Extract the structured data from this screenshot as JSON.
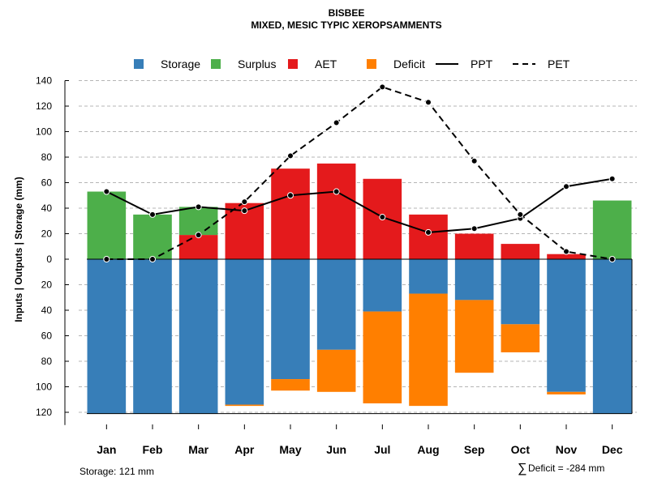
{
  "chart_data": {
    "type": "bar",
    "title": "BISBEE",
    "subtitle": "MIXED, MESIC TYPIC XEROPSAMMENTS",
    "ylabel": "Inputs | Outputs | Storage     (mm)",
    "categories": [
      "Jan",
      "Feb",
      "Mar",
      "Apr",
      "May",
      "Jun",
      "Jul",
      "Aug",
      "Sep",
      "Oct",
      "Nov",
      "Dec"
    ],
    "ylim": [
      -121,
      140
    ],
    "yticks": [
      {
        "value": 140,
        "label": "140"
      },
      {
        "value": 120,
        "label": "120"
      },
      {
        "value": 100,
        "label": "100"
      },
      {
        "value": 80,
        "label": "80"
      },
      {
        "value": 60,
        "label": "60"
      },
      {
        "value": 40,
        "label": "40"
      },
      {
        "value": 20,
        "label": "20"
      },
      {
        "value": 0,
        "label": "0"
      },
      {
        "value": -20,
        "label": "20"
      },
      {
        "value": -40,
        "label": "40"
      },
      {
        "value": -60,
        "label": "60"
      },
      {
        "value": -80,
        "label": "80"
      },
      {
        "value": -100,
        "label": "100"
      },
      {
        "value": -120,
        "label": "120"
      }
    ],
    "grid": true,
    "legend_position": "top",
    "series": [
      {
        "name": "Storage",
        "kind": "bar-below",
        "color": "#377EB8",
        "values": [
          121,
          121,
          121,
          114,
          94,
          71,
          41,
          27,
          32,
          51,
          104,
          121
        ]
      },
      {
        "name": "Surplus",
        "kind": "bar-above-stack",
        "color": "#4DAF4A",
        "values": [
          53,
          35,
          22,
          0,
          0,
          0,
          0,
          0,
          0,
          0,
          0,
          46
        ]
      },
      {
        "name": "AET",
        "kind": "bar-above",
        "color": "#E41A1C",
        "values": [
          0,
          0,
          19,
          44,
          71,
          75,
          63,
          35,
          20,
          12,
          4,
          0
        ]
      },
      {
        "name": "Deficit",
        "kind": "bar-below-stack",
        "color": "#FF7F00",
        "values": [
          0,
          0,
          0,
          1,
          9,
          33,
          72,
          88,
          57,
          22,
          2,
          0
        ]
      },
      {
        "name": "PPT",
        "kind": "line-solid",
        "color": "#000000",
        "values": [
          53,
          35,
          41,
          38,
          50,
          53,
          33,
          21,
          24,
          32,
          57,
          63
        ]
      },
      {
        "name": "PET",
        "kind": "line-dashed",
        "color": "#000000",
        "values": [
          0,
          0,
          19,
          45,
          81,
          107,
          135,
          123,
          77,
          35,
          6,
          0
        ]
      }
    ],
    "annotations": {
      "storage": "Storage: 121 mm",
      "deficit_symbol": "∑",
      "deficit": "Deficit = -284 mm"
    }
  }
}
